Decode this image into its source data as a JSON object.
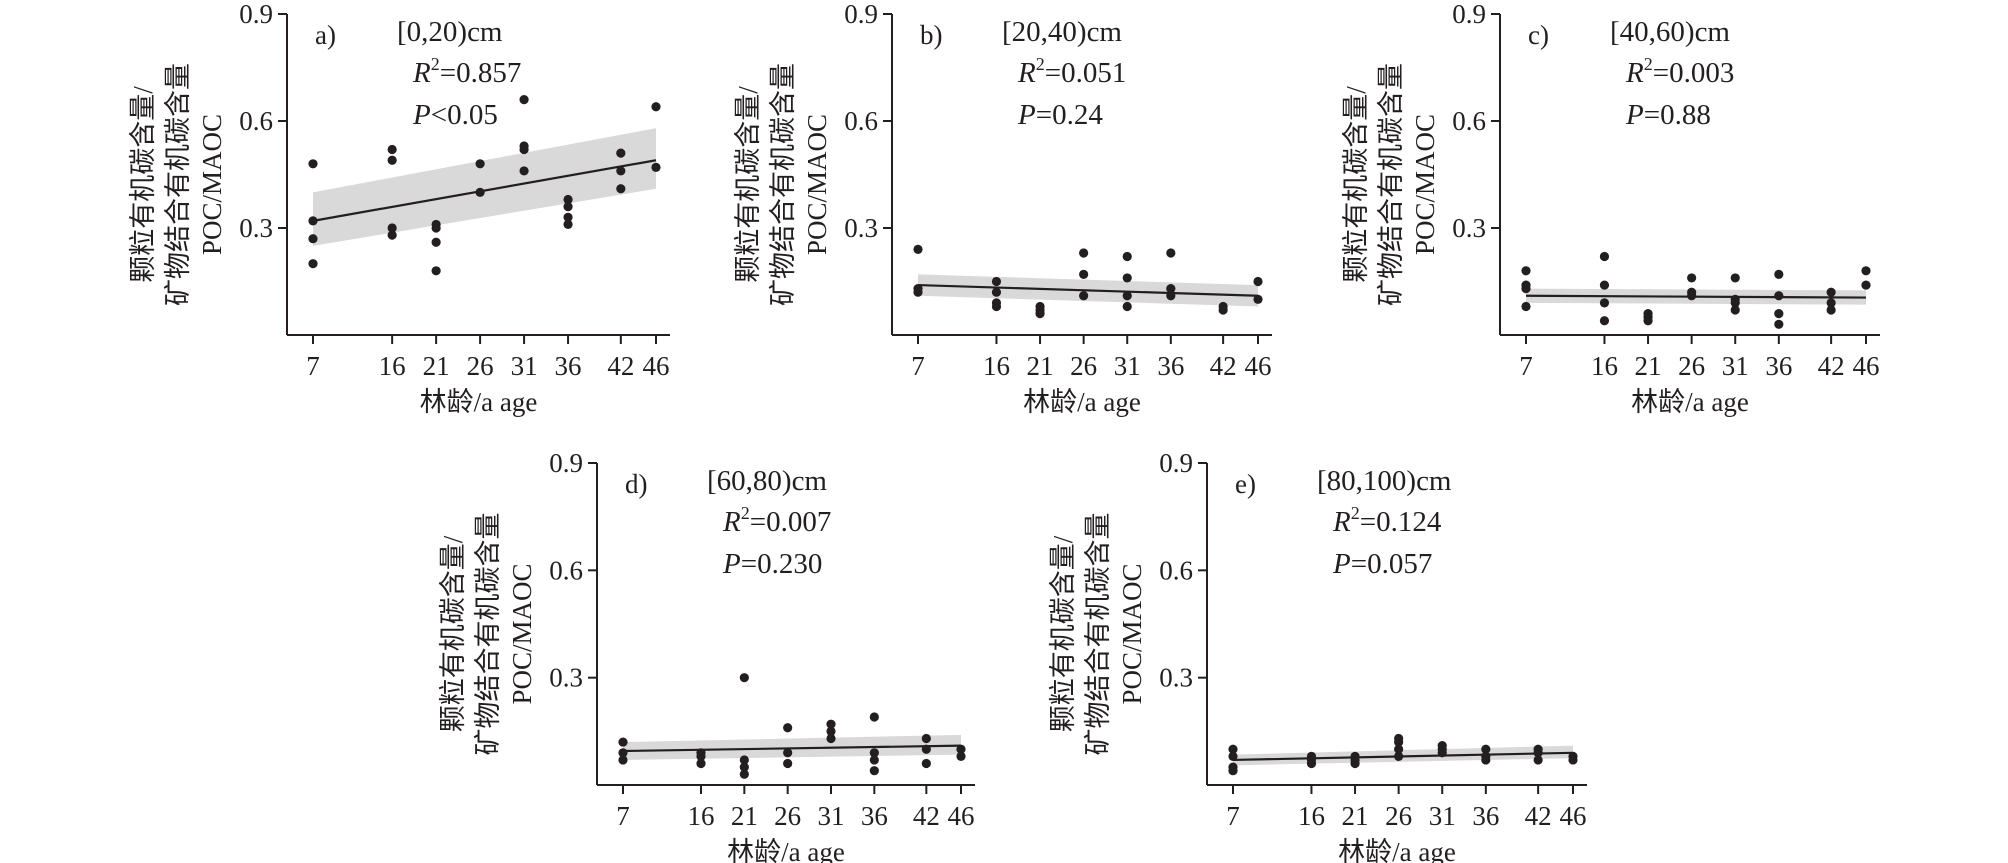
{
  "xlabel": "林龄/a age",
  "ylabel_line1": "颗粒有机碳含量/",
  "ylabel_line2": "矿物结合有机碳含量",
  "ylabel_line3": "POC/MAOC",
  "chart_data": [
    {
      "type": "scatter",
      "panel": "a)",
      "title": "[0,20)cm",
      "r2_label": "R",
      "r2_exp": "2",
      "r2_value": "=0.857",
      "p_label": "P",
      "p_value": "<0.05",
      "x_ticks": [
        "7",
        "16",
        "21",
        "26",
        "31",
        "36",
        "42",
        "46"
      ],
      "x_positions": [
        7,
        16,
        21,
        26,
        31,
        36,
        42,
        46
      ],
      "y_ticks": [
        "0.3",
        "0.6",
        "0.9"
      ],
      "ylim": [
        0,
        0.9
      ],
      "fit": {
        "start": 0.32,
        "end": 0.49,
        "band_start": [
          0.25,
          0.4
        ],
        "band_end": [
          0.41,
          0.58
        ]
      },
      "points": [
        [
          7,
          0.48
        ],
        [
          7,
          0.32
        ],
        [
          7,
          0.27
        ],
        [
          7,
          0.2
        ],
        [
          16,
          0.52
        ],
        [
          16,
          0.49
        ],
        [
          16,
          0.3
        ],
        [
          16,
          0.28
        ],
        [
          21,
          0.31
        ],
        [
          21,
          0.3
        ],
        [
          21,
          0.26
        ],
        [
          21,
          0.18
        ],
        [
          26,
          0.48
        ],
        [
          26,
          0.4
        ],
        [
          31,
          0.66
        ],
        [
          31,
          0.53
        ],
        [
          31,
          0.52
        ],
        [
          31,
          0.46
        ],
        [
          36,
          0.38
        ],
        [
          36,
          0.36
        ],
        [
          36,
          0.33
        ],
        [
          36,
          0.31
        ],
        [
          42,
          0.51
        ],
        [
          42,
          0.46
        ],
        [
          42,
          0.41
        ],
        [
          46,
          0.64
        ],
        [
          46,
          0.47
        ]
      ]
    },
    {
      "type": "scatter",
      "panel": "b)",
      "title": "[20,40)cm",
      "r2_label": "R",
      "r2_exp": "2",
      "r2_value": "=0.051",
      "p_label": "P",
      "p_value": "=0.24",
      "x_ticks": [
        "7",
        "16",
        "21",
        "26",
        "31",
        "36",
        "42",
        "46"
      ],
      "x_positions": [
        7,
        16,
        21,
        26,
        31,
        36,
        42,
        46
      ],
      "y_ticks": [
        "0.3",
        "0.6",
        "0.9"
      ],
      "ylim": [
        0,
        0.9
      ],
      "fit": {
        "start": 0.14,
        "end": 0.11,
        "band_start": [
          0.11,
          0.17
        ],
        "band_end": [
          0.08,
          0.14
        ]
      },
      "points": [
        [
          7,
          0.24
        ],
        [
          7,
          0.13
        ],
        [
          7,
          0.12
        ],
        [
          16,
          0.15
        ],
        [
          16,
          0.12
        ],
        [
          16,
          0.09
        ],
        [
          16,
          0.08
        ],
        [
          21,
          0.08
        ],
        [
          21,
          0.07
        ],
        [
          21,
          0.06
        ],
        [
          26,
          0.23
        ],
        [
          26,
          0.17
        ],
        [
          26,
          0.11
        ],
        [
          31,
          0.22
        ],
        [
          31,
          0.16
        ],
        [
          31,
          0.11
        ],
        [
          31,
          0.08
        ],
        [
          36,
          0.23
        ],
        [
          36,
          0.13
        ],
        [
          36,
          0.11
        ],
        [
          42,
          0.08
        ],
        [
          42,
          0.07
        ],
        [
          46,
          0.15
        ],
        [
          46,
          0.1
        ]
      ]
    },
    {
      "type": "scatter",
      "panel": "c)",
      "title": "[40,60)cm",
      "r2_label": "R",
      "r2_exp": "2",
      "r2_value": "=0.003",
      "p_label": "P",
      "p_value": "=0.88",
      "x_ticks": [
        "7",
        "16",
        "21",
        "26",
        "31",
        "36",
        "42",
        "46"
      ],
      "x_positions": [
        7,
        16,
        21,
        26,
        31,
        36,
        42,
        46
      ],
      "y_ticks": [
        "0.3",
        "0.6",
        "0.9"
      ],
      "ylim": [
        0,
        0.9
      ],
      "fit": {
        "start": 0.11,
        "end": 0.105,
        "band_start": [
          0.09,
          0.13
        ],
        "band_end": [
          0.085,
          0.125
        ]
      },
      "points": [
        [
          7,
          0.18
        ],
        [
          7,
          0.14
        ],
        [
          7,
          0.13
        ],
        [
          7,
          0.08
        ],
        [
          16,
          0.22
        ],
        [
          16,
          0.14
        ],
        [
          16,
          0.09
        ],
        [
          16,
          0.04
        ],
        [
          21,
          0.06
        ],
        [
          21,
          0.05
        ],
        [
          21,
          0.04
        ],
        [
          26,
          0.16
        ],
        [
          26,
          0.12
        ],
        [
          26,
          0.11
        ],
        [
          31,
          0.16
        ],
        [
          31,
          0.1
        ],
        [
          31,
          0.09
        ],
        [
          31,
          0.07
        ],
        [
          36,
          0.17
        ],
        [
          36,
          0.11
        ],
        [
          36,
          0.06
        ],
        [
          36,
          0.03
        ],
        [
          42,
          0.12
        ],
        [
          42,
          0.09
        ],
        [
          42,
          0.07
        ],
        [
          46,
          0.18
        ],
        [
          46,
          0.14
        ]
      ]
    },
    {
      "type": "scatter",
      "panel": "d)",
      "title": "[60,80)cm",
      "r2_label": "R",
      "r2_exp": "2",
      "r2_value": "=0.007",
      "p_label": "P",
      "p_value": "=0.230",
      "x_ticks": [
        "7",
        "16",
        "21",
        "26",
        "31",
        "36",
        "42",
        "46"
      ],
      "x_positions": [
        7,
        16,
        21,
        26,
        31,
        36,
        42,
        46
      ],
      "y_ticks": [
        "0.3",
        "0.6",
        "0.9"
      ],
      "ylim": [
        0,
        0.9
      ],
      "fit": {
        "start": 0.095,
        "end": 0.11,
        "band_start": [
          0.07,
          0.12
        ],
        "band_end": [
          0.085,
          0.14
        ]
      },
      "points": [
        [
          7,
          0.12
        ],
        [
          7,
          0.09
        ],
        [
          7,
          0.07
        ],
        [
          16,
          0.09
        ],
        [
          16,
          0.08
        ],
        [
          16,
          0.06
        ],
        [
          21,
          0.3
        ],
        [
          21,
          0.07
        ],
        [
          21,
          0.05
        ],
        [
          21,
          0.03
        ],
        [
          26,
          0.16
        ],
        [
          26,
          0.09
        ],
        [
          26,
          0.06
        ],
        [
          31,
          0.17
        ],
        [
          31,
          0.15
        ],
        [
          31,
          0.13
        ],
        [
          36,
          0.19
        ],
        [
          36,
          0.09
        ],
        [
          36,
          0.07
        ],
        [
          36,
          0.04
        ],
        [
          42,
          0.13
        ],
        [
          42,
          0.1
        ],
        [
          42,
          0.06
        ],
        [
          46,
          0.1
        ],
        [
          46,
          0.08
        ]
      ]
    },
    {
      "type": "scatter",
      "panel": "e)",
      "title": "[80,100)cm",
      "r2_label": "R",
      "r2_exp": "2",
      "r2_value": "=0.124",
      "p_label": "P",
      "p_value": "=0.057",
      "x_ticks": [
        "7",
        "16",
        "21",
        "26",
        "31",
        "36",
        "42",
        "46"
      ],
      "x_positions": [
        7,
        16,
        21,
        26,
        31,
        36,
        42,
        46
      ],
      "y_ticks": [
        "0.3",
        "0.6",
        "0.9"
      ],
      "ylim": [
        0,
        0.9
      ],
      "fit": {
        "start": 0.07,
        "end": 0.09,
        "band_start": [
          0.055,
          0.085
        ],
        "band_end": [
          0.075,
          0.11
        ]
      },
      "points": [
        [
          7,
          0.1
        ],
        [
          7,
          0.08
        ],
        [
          7,
          0.05
        ],
        [
          7,
          0.04
        ],
        [
          16,
          0.08
        ],
        [
          16,
          0.07
        ],
        [
          16,
          0.06
        ],
        [
          21,
          0.08
        ],
        [
          21,
          0.07
        ],
        [
          21,
          0.06
        ],
        [
          26,
          0.13
        ],
        [
          26,
          0.12
        ],
        [
          26,
          0.1
        ],
        [
          26,
          0.08
        ],
        [
          31,
          0.11
        ],
        [
          31,
          0.1
        ],
        [
          31,
          0.09
        ],
        [
          36,
          0.1
        ],
        [
          36,
          0.08
        ],
        [
          36,
          0.07
        ],
        [
          42,
          0.1
        ],
        [
          42,
          0.09
        ],
        [
          42,
          0.07
        ],
        [
          46,
          0.08
        ],
        [
          46,
          0.07
        ]
      ]
    }
  ]
}
